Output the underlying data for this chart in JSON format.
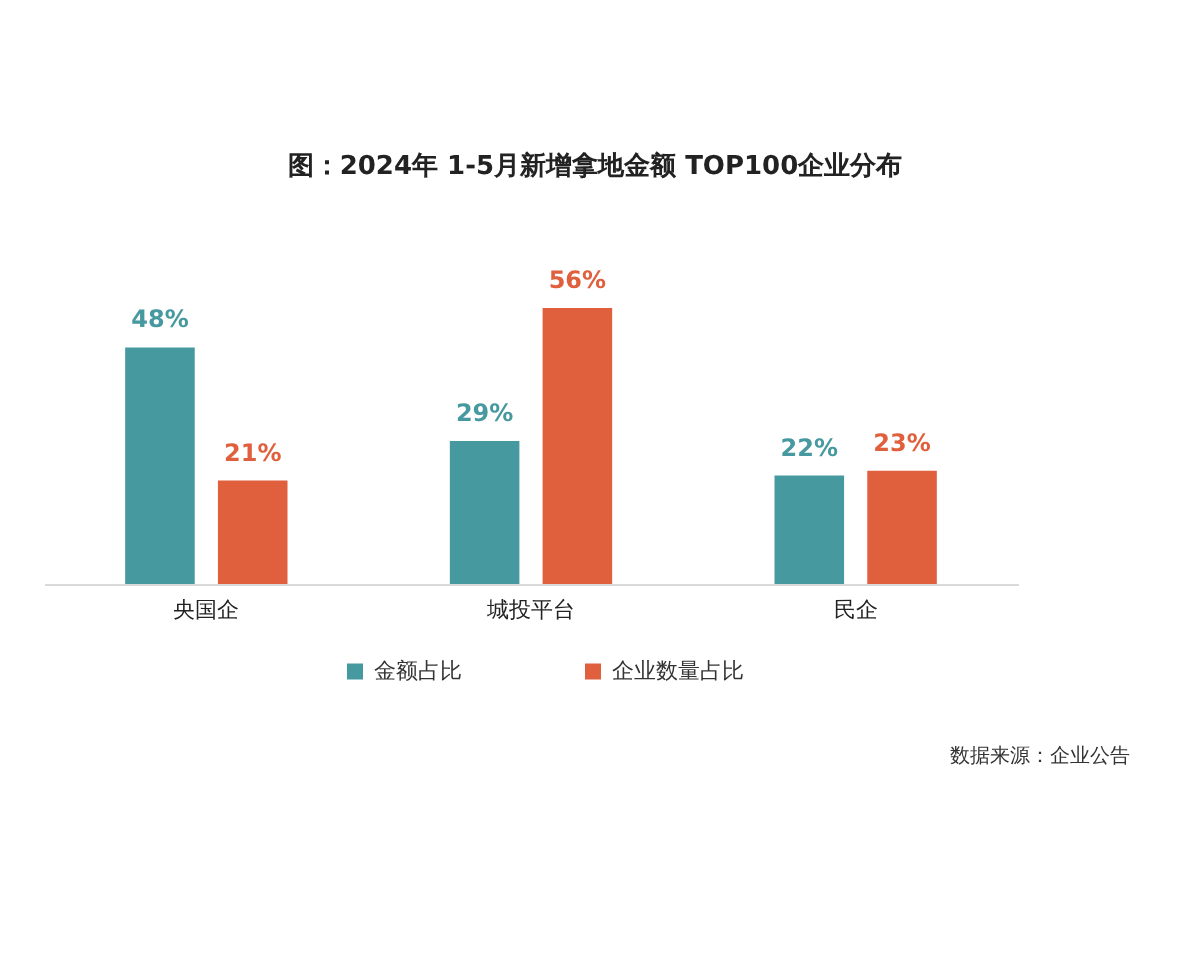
{
  "chart_data": {
    "type": "bar",
    "title": "图：2024年 1-5月新增拿地金额 TOP100企业分布",
    "categories": [
      "央国企",
      "城投平台",
      "民企"
    ],
    "series": [
      {
        "name": "金额占比",
        "color": "#46999e",
        "values": [
          48,
          29,
          22
        ],
        "value_labels": [
          "48%",
          "29%",
          "22%"
        ]
      },
      {
        "name": "企业数量占比",
        "color": "#e05f3d",
        "values": [
          21,
          56,
          23
        ],
        "value_labels": [
          "21%",
          "56%",
          "23%"
        ]
      }
    ],
    "legend": "bottom",
    "annotations": [
      "数据来源：企业公告"
    ]
  }
}
